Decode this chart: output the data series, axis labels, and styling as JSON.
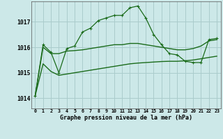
{
  "xlabel": "Graphe pression niveau de la mer (hPa)",
  "bg_color": "#cce8e8",
  "grid_color": "#aacccc",
  "line_color": "#1a6b1a",
  "x_ticks": [
    0,
    1,
    2,
    3,
    4,
    5,
    6,
    7,
    8,
    9,
    10,
    11,
    12,
    13,
    14,
    15,
    16,
    17,
    18,
    19,
    20,
    21,
    22,
    23
  ],
  "ylim": [
    1013.6,
    1017.8
  ],
  "yticks": [
    1014,
    1015,
    1016,
    1017
  ],
  "series1": [
    1014.1,
    1016.1,
    1015.8,
    1015.0,
    1015.95,
    1016.05,
    1016.6,
    1016.75,
    1017.05,
    1017.15,
    1017.25,
    1017.25,
    1017.55,
    1017.62,
    1017.15,
    1016.5,
    1016.1,
    1015.75,
    1015.7,
    1015.45,
    1015.4,
    1015.4,
    1016.3,
    1016.35
  ],
  "series2": [
    1014.1,
    1016.0,
    1015.75,
    1015.75,
    1015.85,
    1015.87,
    1015.9,
    1015.95,
    1016.0,
    1016.05,
    1016.1,
    1016.1,
    1016.15,
    1016.15,
    1016.1,
    1016.05,
    1016.0,
    1015.95,
    1015.9,
    1015.9,
    1015.95,
    1016.05,
    1016.25,
    1016.3
  ],
  "series3": [
    1014.1,
    1015.35,
    1015.05,
    1014.9,
    1014.95,
    1015.0,
    1015.05,
    1015.1,
    1015.15,
    1015.2,
    1015.25,
    1015.3,
    1015.35,
    1015.38,
    1015.4,
    1015.42,
    1015.44,
    1015.45,
    1015.45,
    1015.47,
    1015.5,
    1015.55,
    1015.6,
    1015.65
  ]
}
